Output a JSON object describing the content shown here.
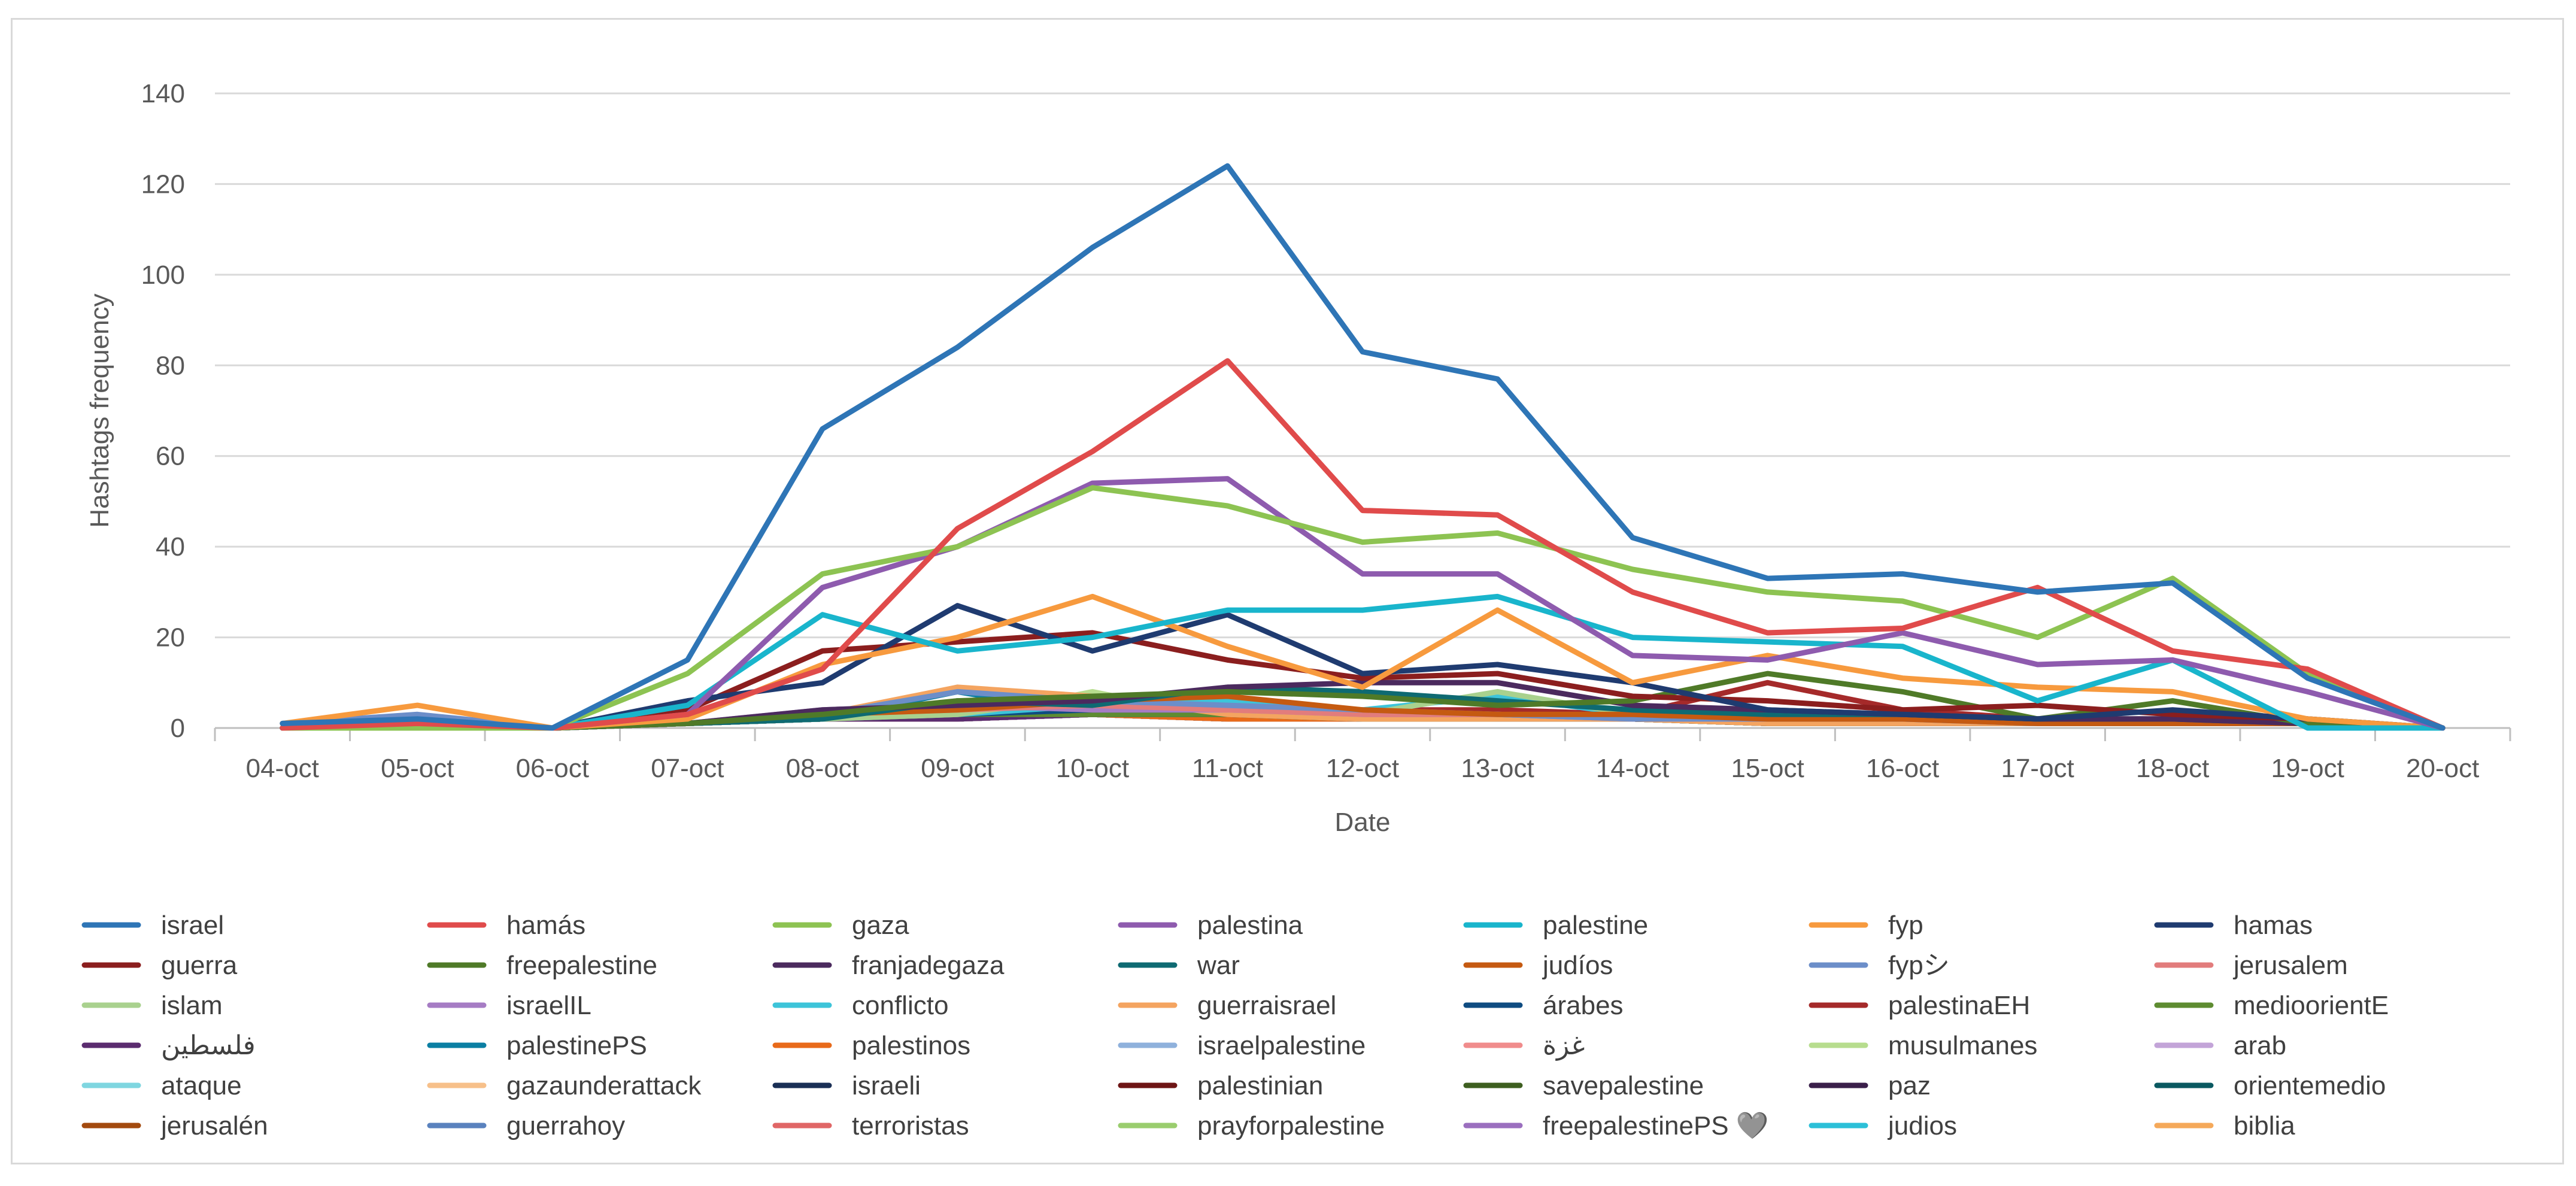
{
  "chart_data": {
    "type": "line",
    "title": "",
    "xlabel": "Date",
    "ylabel": "Hashtags frequency",
    "ylim": [
      0,
      140
    ],
    "yticks": [
      0,
      20,
      40,
      60,
      80,
      100,
      120,
      140
    ],
    "grid": true,
    "legend_position": "bottom",
    "categories": [
      "04-oct",
      "05-oct",
      "06-oct",
      "07-oct",
      "08-oct",
      "09-oct",
      "10-oct",
      "11-oct",
      "12-oct",
      "13-oct",
      "14-oct",
      "15-oct",
      "16-oct",
      "17-oct",
      "18-oct",
      "19-oct",
      "20-oct"
    ],
    "series": [
      {
        "name": "israel",
        "color": "#2E75B6",
        "values": [
          1,
          2,
          0,
          15,
          66,
          84,
          106,
          124,
          83,
          77,
          42,
          33,
          34,
          30,
          32,
          11,
          0
        ]
      },
      {
        "name": "hamás",
        "color": "#E04B4B",
        "values": [
          0,
          1,
          0,
          3,
          13,
          44,
          61,
          81,
          48,
          47,
          30,
          21,
          22,
          31,
          17,
          13,
          0
        ]
      },
      {
        "name": "gaza",
        "color": "#8DC352",
        "values": [
          0,
          0,
          0,
          12,
          34,
          40,
          53,
          49,
          41,
          43,
          35,
          30,
          28,
          20,
          33,
          12,
          0
        ]
      },
      {
        "name": "palestina",
        "color": "#8E5BAE",
        "values": [
          0,
          0,
          0,
          3,
          31,
          40,
          54,
          55,
          34,
          34,
          16,
          15,
          21,
          14,
          15,
          8,
          0
        ]
      },
      {
        "name": "palestine",
        "color": "#19B5CC",
        "values": [
          0,
          0,
          0,
          5,
          25,
          17,
          20,
          26,
          26,
          29,
          20,
          19,
          18,
          6,
          15,
          0,
          0
        ]
      },
      {
        "name": "fyp",
        "color": "#F79A3E",
        "values": [
          1,
          5,
          0,
          2,
          14,
          20,
          29,
          18,
          9,
          26,
          10,
          16,
          11,
          9,
          8,
          2,
          0
        ]
      },
      {
        "name": "hamas",
        "color": "#1F3B70",
        "values": [
          0,
          0,
          0,
          6,
          10,
          27,
          17,
          25,
          12,
          14,
          10,
          4,
          3,
          2,
          4,
          2,
          0
        ]
      },
      {
        "name": "guerra",
        "color": "#8B1E1E",
        "values": [
          0,
          0,
          0,
          4,
          17,
          19,
          21,
          15,
          11,
          12,
          7,
          6,
          4,
          5,
          3,
          2,
          0
        ]
      },
      {
        "name": "freepalestine",
        "color": "#4F7A28",
        "values": [
          0,
          0,
          0,
          1,
          3,
          6,
          7,
          8,
          7,
          5,
          6,
          12,
          8,
          2,
          6,
          1,
          0
        ]
      },
      {
        "name": "franjadegaza",
        "color": "#4B2A5E",
        "values": [
          0,
          0,
          0,
          1,
          4,
          5,
          6,
          9,
          10,
          10,
          5,
          4,
          3,
          2,
          2,
          1,
          0
        ]
      },
      {
        "name": "war",
        "color": "#0E6A72",
        "values": [
          0,
          0,
          0,
          1,
          2,
          6,
          5,
          9,
          8,
          6,
          4,
          3,
          3,
          2,
          2,
          1,
          0
        ]
      },
      {
        "name": "judíos",
        "color": "#C55A11",
        "values": [
          0,
          0,
          0,
          1,
          3,
          4,
          6,
          7,
          4,
          3,
          3,
          2,
          2,
          1,
          1,
          1,
          0
        ]
      },
      {
        "name": "fypシ",
        "color": "#6C8EC9",
        "values": [
          1,
          3,
          0,
          1,
          3,
          8,
          6,
          5,
          4,
          3,
          2,
          2,
          2,
          1,
          1,
          1,
          0
        ]
      },
      {
        "name": "jerusalem",
        "color": "#E27C7C",
        "values": [
          0,
          0,
          0,
          1,
          3,
          4,
          5,
          4,
          3,
          3,
          2,
          2,
          2,
          1,
          1,
          1,
          0
        ]
      },
      {
        "name": "islam",
        "color": "#A9D18E",
        "values": [
          0,
          0,
          0,
          1,
          2,
          3,
          7,
          4,
          3,
          8,
          3,
          2,
          2,
          1,
          2,
          1,
          0
        ]
      },
      {
        "name": "israelIL",
        "color": "#A67CC4",
        "values": [
          0,
          0,
          0,
          1,
          4,
          5,
          4,
          4,
          3,
          3,
          2,
          2,
          2,
          1,
          2,
          1,
          0
        ]
      },
      {
        "name": "conflicto",
        "color": "#3DC4D9",
        "values": [
          0,
          0,
          0,
          1,
          2,
          3,
          5,
          6,
          4,
          7,
          3,
          2,
          2,
          1,
          1,
          1,
          0
        ]
      },
      {
        "name": "guerraisrael",
        "color": "#F4A460",
        "values": [
          0,
          0,
          0,
          1,
          3,
          9,
          7,
          3,
          2,
          2,
          2,
          1,
          1,
          1,
          1,
          1,
          0
        ]
      },
      {
        "name": "árabes",
        "color": "#0F4C81",
        "values": [
          0,
          0,
          0,
          1,
          2,
          3,
          4,
          4,
          3,
          2,
          2,
          2,
          1,
          1,
          1,
          1,
          0
        ]
      },
      {
        "name": "palestinaEH",
        "color": "#A52A2A",
        "values": [
          0,
          0,
          0,
          1,
          2,
          3,
          5,
          5,
          4,
          4,
          3,
          10,
          4,
          2,
          2,
          1,
          0
        ]
      },
      {
        "name": "medioorientE",
        "color": "#5E8C31",
        "values": [
          0,
          0,
          0,
          1,
          2,
          3,
          3,
          3,
          2,
          2,
          2,
          1,
          1,
          1,
          1,
          1,
          0
        ]
      },
      {
        "name": "فلسطين",
        "color": "#5B2C6F",
        "values": [
          0,
          0,
          0,
          1,
          2,
          2,
          3,
          3,
          2,
          2,
          2,
          1,
          1,
          1,
          1,
          1,
          0
        ]
      },
      {
        "name": "palestinePS",
        "color": "#0B7FA3",
        "values": [
          0,
          0,
          0,
          1,
          2,
          8,
          3,
          3,
          2,
          2,
          2,
          1,
          1,
          1,
          1,
          1,
          0
        ]
      },
      {
        "name": "palestinos",
        "color": "#E86A1A",
        "values": [
          0,
          0,
          0,
          1,
          2,
          3,
          3,
          2,
          2,
          2,
          2,
          1,
          1,
          1,
          1,
          1,
          0
        ]
      },
      {
        "name": "israelpalestine",
        "color": "#8FB1DC",
        "values": [
          0,
          0,
          0,
          1,
          2,
          9,
          3,
          2,
          2,
          2,
          2,
          1,
          1,
          1,
          1,
          1,
          0
        ]
      },
      {
        "name": "غزة",
        "color": "#F08C8C",
        "values": [
          0,
          0,
          0,
          1,
          2,
          2,
          3,
          2,
          2,
          2,
          2,
          1,
          1,
          1,
          1,
          1,
          0
        ]
      },
      {
        "name": "musulmanes",
        "color": "#B7DD8E",
        "values": [
          0,
          0,
          0,
          1,
          2,
          2,
          8,
          2,
          2,
          2,
          2,
          1,
          1,
          1,
          1,
          1,
          0
        ]
      },
      {
        "name": "arab",
        "color": "#C3A4D8",
        "values": [
          0,
          0,
          0,
          1,
          2,
          2,
          3,
          2,
          2,
          2,
          2,
          1,
          1,
          1,
          1,
          1,
          0
        ]
      },
      {
        "name": "ataque",
        "color": "#7FD6E0",
        "values": [
          0,
          0,
          0,
          1,
          2,
          2,
          3,
          2,
          2,
          2,
          2,
          1,
          1,
          1,
          1,
          1,
          0
        ]
      },
      {
        "name": "gazaunderattack",
        "color": "#F7C08A",
        "values": [
          0,
          0,
          0,
          1,
          2,
          2,
          3,
          2,
          2,
          2,
          2,
          1,
          1,
          1,
          1,
          1,
          0
        ]
      },
      {
        "name": "israeli",
        "color": "#1A2F55",
        "values": [
          0,
          0,
          0,
          1,
          2,
          2,
          3,
          2,
          2,
          2,
          2,
          1,
          1,
          1,
          1,
          1,
          0
        ]
      },
      {
        "name": "palestinian",
        "color": "#6E1515",
        "values": [
          0,
          0,
          0,
          1,
          2,
          2,
          3,
          2,
          2,
          2,
          2,
          1,
          1,
          1,
          1,
          1,
          0
        ]
      },
      {
        "name": "savepalestine",
        "color": "#3E5F20",
        "values": [
          0,
          0,
          0,
          1,
          2,
          2,
          3,
          2,
          2,
          2,
          2,
          1,
          1,
          1,
          1,
          1,
          0
        ]
      },
      {
        "name": "paz",
        "color": "#3A1F4A",
        "values": [
          0,
          0,
          0,
          1,
          2,
          2,
          3,
          2,
          2,
          2,
          2,
          1,
          1,
          1,
          1,
          1,
          0
        ]
      },
      {
        "name": "orientemedio",
        "color": "#0A5961",
        "values": [
          0,
          0,
          0,
          1,
          2,
          2,
          3,
          2,
          2,
          2,
          2,
          1,
          1,
          1,
          1,
          1,
          0
        ]
      },
      {
        "name": "jerusalén",
        "color": "#A34A0E",
        "values": [
          0,
          0,
          0,
          1,
          2,
          2,
          3,
          2,
          2,
          2,
          2,
          1,
          1,
          1,
          1,
          1,
          0
        ]
      },
      {
        "name": "guerrahoy",
        "color": "#5A82BE",
        "values": [
          0,
          0,
          0,
          1,
          2,
          2,
          3,
          2,
          2,
          2,
          2,
          1,
          1,
          1,
          1,
          1,
          0
        ]
      },
      {
        "name": "terroristas",
        "color": "#E06666",
        "values": [
          0,
          0,
          0,
          1,
          2,
          2,
          3,
          2,
          2,
          2,
          2,
          1,
          1,
          1,
          1,
          1,
          0
        ]
      },
      {
        "name": "prayforpalestine",
        "color": "#9ACD6E",
        "values": [
          0,
          0,
          0,
          1,
          2,
          2,
          3,
          2,
          2,
          2,
          2,
          1,
          1,
          1,
          1,
          1,
          0
        ]
      },
      {
        "name": "freepalestinePS 🩶",
        "color": "#9B6FBF",
        "values": [
          0,
          0,
          0,
          1,
          2,
          2,
          3,
          2,
          2,
          2,
          2,
          1,
          1,
          1,
          1,
          1,
          0
        ]
      },
      {
        "name": "judios",
        "color": "#2CC0D8",
        "values": [
          0,
          0,
          0,
          1,
          2,
          2,
          3,
          2,
          2,
          2,
          2,
          1,
          1,
          1,
          1,
          1,
          0
        ]
      },
      {
        "name": "biblia",
        "color": "#F5A95A",
        "values": [
          0,
          0,
          0,
          1,
          2,
          2,
          3,
          2,
          2,
          2,
          2,
          1,
          1,
          1,
          1,
          1,
          0
        ]
      }
    ]
  }
}
